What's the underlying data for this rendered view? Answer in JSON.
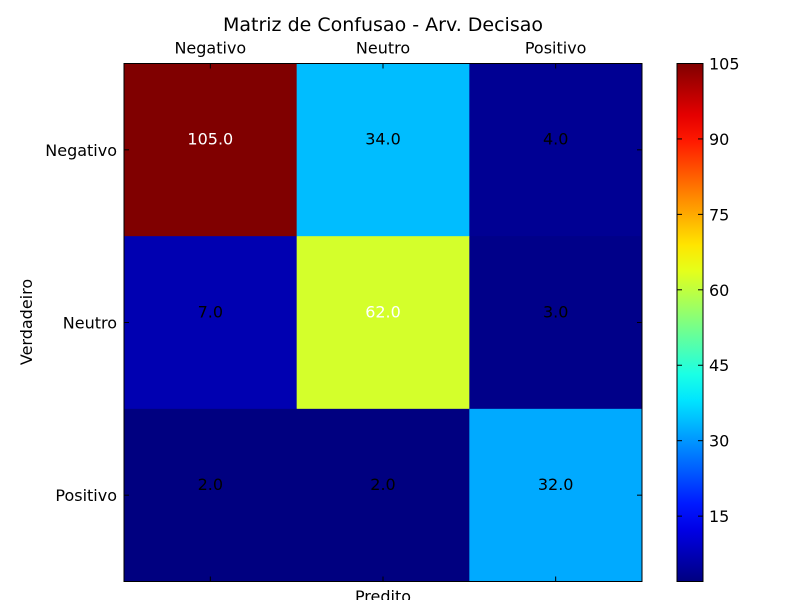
{
  "chart_data": {
    "type": "heatmap",
    "title": "Matriz de Confusao - Arv. Decisao",
    "xlabel": "Predito",
    "ylabel": "Verdadeiro",
    "x_categories": [
      "Negativo",
      "Neutro",
      "Positivo"
    ],
    "y_categories": [
      "Negativo",
      "Neutro",
      "Positivo"
    ],
    "values": [
      [
        105.0,
        34.0,
        4.0
      ],
      [
        7.0,
        62.0,
        3.0
      ],
      [
        2.0,
        2.0,
        32.0
      ]
    ],
    "cell_labels": [
      [
        "105.0",
        "34.0",
        "4.0"
      ],
      [
        "7.0",
        "62.0",
        "3.0"
      ],
      [
        "2.0",
        "2.0",
        "32.0"
      ]
    ],
    "colorscale": "jet",
    "color_range": [
      2,
      105
    ],
    "colorbar_ticks": [
      15,
      30,
      45,
      60,
      75,
      90,
      105
    ],
    "x_axis_position": "top",
    "grid": false
  }
}
